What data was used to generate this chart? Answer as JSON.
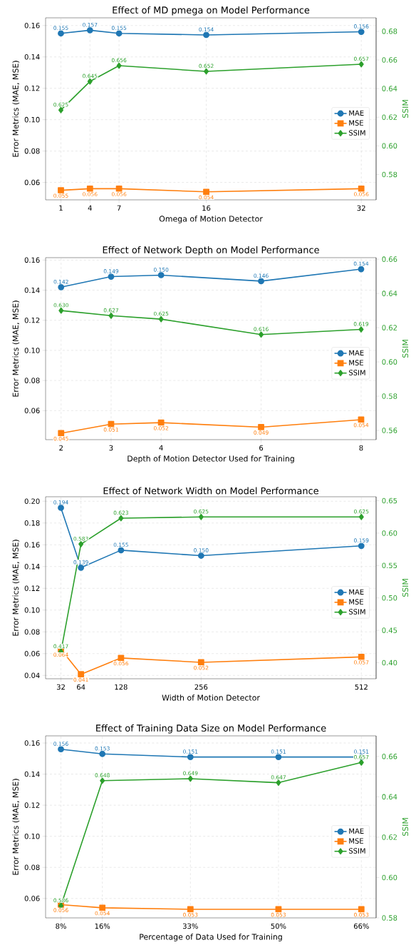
{
  "chart_data": [
    {
      "type": "line",
      "title": "Effect of MD pmega on Model Performance",
      "xlabel": "Omega of Motion Detector",
      "ylabel": "Error Metrics (MAE, MSE)",
      "y2label": "SSIM",
      "x": [
        1,
        4,
        7,
        16,
        32
      ],
      "xlim": [
        -0.58,
        33.53
      ],
      "xticks": [
        1,
        4,
        7,
        16,
        32
      ],
      "ylim": [
        0.0489,
        0.1649
      ],
      "yticks": [
        {
          "value": 0.06,
          "label": "0.06"
        },
        {
          "value": 0.08,
          "label": "0.08"
        },
        {
          "value": 0.1,
          "label": "0.10"
        },
        {
          "value": 0.12,
          "label": "0.12"
        },
        {
          "value": 0.14,
          "label": "0.14"
        },
        {
          "value": 0.16,
          "label": "0.16"
        }
      ],
      "y2lim": [
        0.5623,
        0.6894
      ],
      "y2ticks": [
        {
          "value": 0.58,
          "label": "0.58"
        },
        {
          "value": 0.6,
          "label": "0.60"
        },
        {
          "value": 0.62,
          "label": "0.62"
        },
        {
          "value": 0.64,
          "label": "0.64"
        },
        {
          "value": 0.66,
          "label": "0.66"
        },
        {
          "value": 0.68,
          "label": "0.68"
        }
      ],
      "grid": true,
      "legend": "right",
      "series": [
        {
          "name": "MAE",
          "color": "#1f77b4",
          "marker": "circle",
          "values": [
            0.155,
            0.157,
            0.155,
            0.154,
            0.156
          ],
          "value_labels": [
            "0.155",
            "0.157",
            "0.155",
            "0.154",
            "0.156"
          ]
        },
        {
          "name": "MSE",
          "color": "#ff7f0e",
          "marker": "square",
          "values": [
            0.055,
            0.056,
            0.056,
            0.054,
            0.056
          ],
          "value_labels": [
            "0.055",
            "0.056",
            "0.056",
            "0.054",
            "0.056"
          ]
        },
        {
          "name": "SSIM",
          "color": "#2ca02c",
          "marker": "diamond",
          "axis": "y2",
          "values": [
            0.625,
            0.645,
            0.656,
            0.652,
            0.657
          ],
          "value_labels": [
            "0.625",
            "0.645",
            "0.656",
            "0.652",
            "0.657"
          ]
        }
      ]
    },
    {
      "type": "line",
      "title": "Effect of Network Depth on Model Performance",
      "xlabel": "Depth of Motion Detector Used for Training",
      "ylabel": "Error Metrics (MAE, MSE)",
      "y2label": "SSIM",
      "x": [
        2,
        3,
        4,
        6,
        8
      ],
      "xlim": [
        1.69,
        8.3
      ],
      "xticks": [
        2,
        3,
        4,
        6,
        8
      ],
      "ylim": [
        0.0407,
        0.1616
      ],
      "yticks": [
        {
          "value": 0.06,
          "label": "0.06"
        },
        {
          "value": 0.08,
          "label": "0.08"
        },
        {
          "value": 0.1,
          "label": "0.10"
        },
        {
          "value": 0.12,
          "label": "0.12"
        },
        {
          "value": 0.14,
          "label": "0.14"
        },
        {
          "value": 0.16,
          "label": "0.16"
        }
      ],
      "y2lim": [
        0.5546,
        0.6609
      ],
      "y2ticks": [
        {
          "value": 0.56,
          "label": "0.56"
        },
        {
          "value": 0.58,
          "label": "0.58"
        },
        {
          "value": 0.6,
          "label": "0.60"
        },
        {
          "value": 0.62,
          "label": "0.62"
        },
        {
          "value": 0.64,
          "label": "0.64"
        },
        {
          "value": 0.66,
          "label": "0.66"
        }
      ],
      "grid": true,
      "legend": "right",
      "series": [
        {
          "name": "MAE",
          "color": "#1f77b4",
          "marker": "circle",
          "values": [
            0.142,
            0.149,
            0.15,
            0.146,
            0.154
          ],
          "value_labels": [
            "0.142",
            "0.149",
            "0.150",
            "0.146",
            "0.154"
          ]
        },
        {
          "name": "MSE",
          "color": "#ff7f0e",
          "marker": "square",
          "values": [
            0.045,
            0.051,
            0.052,
            0.049,
            0.054
          ],
          "value_labels": [
            "0.045",
            "0.051",
            "0.052",
            "0.049",
            "0.054"
          ]
        },
        {
          "name": "SSIM",
          "color": "#2ca02c",
          "marker": "diamond",
          "axis": "y2",
          "values": [
            0.63,
            0.627,
            0.625,
            0.616,
            0.619
          ],
          "value_labels": [
            "0.630",
            "0.627",
            "0.625",
            "0.616",
            "0.619"
          ]
        }
      ]
    },
    {
      "type": "line",
      "title": "Effect of Network Width on Model Performance",
      "xlabel": "Width of Motion Detector",
      "ylabel": "Error Metrics (MAE, MSE)",
      "y2label": "SSIM",
      "x": [
        32,
        64,
        128,
        256,
        512
      ],
      "xlim": [
        7.5,
        535.6
      ],
      "xticks": [
        32,
        64,
        128,
        256,
        512
      ],
      "ylim": [
        0.0369,
        0.2041
      ],
      "yticks": [
        {
          "value": 0.04,
          "label": "0.04"
        },
        {
          "value": 0.06,
          "label": "0.06"
        },
        {
          "value": 0.08,
          "label": "0.08"
        },
        {
          "value": 0.1,
          "label": "0.10"
        },
        {
          "value": 0.12,
          "label": "0.12"
        },
        {
          "value": 0.14,
          "label": "0.14"
        },
        {
          "value": 0.16,
          "label": "0.16"
        },
        {
          "value": 0.18,
          "label": "0.18"
        },
        {
          "value": 0.2,
          "label": "0.20"
        }
      ],
      "y2lim": [
        0.3752,
        0.6561
      ],
      "y2ticks": [
        {
          "value": 0.4,
          "label": "0.40"
        },
        {
          "value": 0.45,
          "label": "0.45"
        },
        {
          "value": 0.5,
          "label": "0.50"
        },
        {
          "value": 0.55,
          "label": "0.55"
        },
        {
          "value": 0.6,
          "label": "0.60"
        },
        {
          "value": 0.65,
          "label": "0.65"
        }
      ],
      "grid": true,
      "legend": "right",
      "series": [
        {
          "name": "MAE",
          "color": "#1f77b4",
          "marker": "circle",
          "values": [
            0.194,
            0.139,
            0.155,
            0.15,
            0.159
          ],
          "value_labels": [
            "0.194",
            "0.139",
            "0.155",
            "0.150",
            "0.159"
          ]
        },
        {
          "name": "MSE",
          "color": "#ff7f0e",
          "marker": "square",
          "values": [
            0.064,
            0.041,
            0.056,
            0.052,
            0.057
          ],
          "value_labels": [
            "0.064",
            "0.041",
            "0.056",
            "0.052",
            "0.057"
          ]
        },
        {
          "name": "SSIM",
          "color": "#2ca02c",
          "marker": "diamond",
          "axis": "y2",
          "values": [
            0.417,
            0.583,
            0.623,
            0.625,
            0.625
          ],
          "value_labels": [
            "0.417",
            "0.583",
            "0.623",
            "0.625",
            "0.625"
          ]
        }
      ]
    },
    {
      "type": "line",
      "title": "Effect of Training Data Size on Model Performance",
      "xlabel": "Percentage of Data Used for Training",
      "ylabel": "Error Metrics (MAE, MSE)",
      "y2label": "SSIM",
      "x": [
        8,
        16,
        33,
        50,
        66
      ],
      "xlim": [
        5.04,
        68.85
      ],
      "xticks": [
        {
          "value": 8,
          "label": "8%"
        },
        {
          "value": 16,
          "label": "16%"
        },
        {
          "value": 33,
          "label": "33%"
        },
        {
          "value": 50,
          "label": "50%"
        },
        {
          "value": 66,
          "label": "66%"
        }
      ],
      "ylim": [
        0.0475,
        0.1646
      ],
      "yticks": [
        {
          "value": 0.06,
          "label": "0.06"
        },
        {
          "value": 0.08,
          "label": "0.08"
        },
        {
          "value": 0.1,
          "label": "0.10"
        },
        {
          "value": 0.12,
          "label": "0.12"
        },
        {
          "value": 0.14,
          "label": "0.14"
        },
        {
          "value": 0.16,
          "label": "0.16"
        }
      ],
      "y2lim": [
        0.58,
        0.6702
      ],
      "y2ticks": [
        {
          "value": 0.58,
          "label": "0.58"
        },
        {
          "value": 0.6,
          "label": "0.60"
        },
        {
          "value": 0.62,
          "label": "0.62"
        },
        {
          "value": 0.64,
          "label": "0.64"
        },
        {
          "value": 0.66,
          "label": "0.66"
        }
      ],
      "grid": true,
      "legend": "right",
      "series": [
        {
          "name": "MAE",
          "color": "#1f77b4",
          "marker": "circle",
          "values": [
            0.156,
            0.153,
            0.151,
            0.151,
            0.151
          ],
          "value_labels": [
            "0.156",
            "0.153",
            "0.151",
            "0.151",
            "0.151"
          ]
        },
        {
          "name": "MSE",
          "color": "#ff7f0e",
          "marker": "square",
          "values": [
            0.056,
            0.054,
            0.053,
            0.053,
            0.053
          ],
          "value_labels": [
            "0.056",
            "0.054",
            "0.053",
            "0.053",
            "0.053"
          ]
        },
        {
          "name": "SSIM",
          "color": "#2ca02c",
          "marker": "diamond",
          "axis": "y2",
          "values": [
            0.586,
            0.648,
            0.649,
            0.647,
            0.657
          ],
          "value_labels": [
            "0.586",
            "0.648",
            "0.649",
            "0.647",
            "0.657"
          ]
        }
      ]
    }
  ]
}
